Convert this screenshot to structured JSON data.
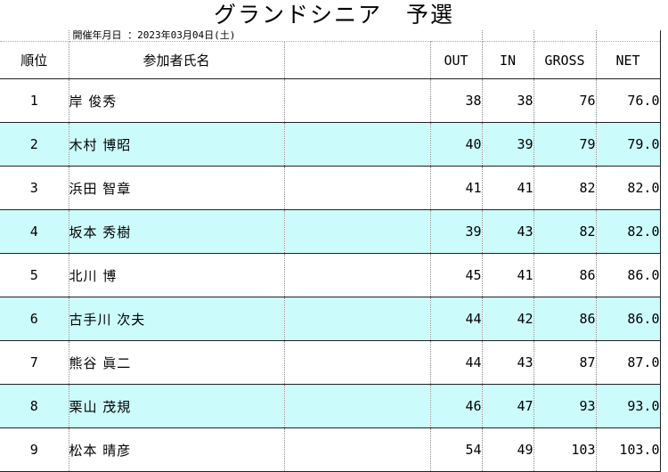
{
  "title": "グランドシニア　予選",
  "date_label": "開催年月日 ：2023年03月04日(土)",
  "headers": {
    "rank": "順位",
    "name": "参加者氏名",
    "out": "OUT",
    "in": "IN",
    "gross": "GROSS",
    "net": "NET"
  },
  "rows": [
    {
      "rank": "1",
      "name": "岸 俊秀",
      "out": "38",
      "in": "38",
      "gross": "76",
      "net": "76.0"
    },
    {
      "rank": "2",
      "name": "木村 博昭",
      "out": "40",
      "in": "39",
      "gross": "79",
      "net": "79.0"
    },
    {
      "rank": "3",
      "name": "浜田 智章",
      "out": "41",
      "in": "41",
      "gross": "82",
      "net": "82.0"
    },
    {
      "rank": "4",
      "name": "坂本 秀樹",
      "out": "39",
      "in": "43",
      "gross": "82",
      "net": "82.0"
    },
    {
      "rank": "5",
      "name": "北川 博",
      "out": "45",
      "in": "41",
      "gross": "86",
      "net": "86.0"
    },
    {
      "rank": "6",
      "name": "古手川 次夫",
      "out": "44",
      "in": "42",
      "gross": "86",
      "net": "86.0"
    },
    {
      "rank": "7",
      "name": "熊谷 眞二",
      "out": "44",
      "in": "43",
      "gross": "87",
      "net": "87.0"
    },
    {
      "rank": "8",
      "name": "栗山 茂規",
      "out": "46",
      "in": "47",
      "gross": "93",
      "net": "93.0"
    },
    {
      "rank": "9",
      "name": "松本 晴彦",
      "out": "54",
      "in": "49",
      "gross": "103",
      "net": "103.0"
    }
  ],
  "colors": {
    "alt_row": "#ccfbfb",
    "grid": "#222222"
  }
}
